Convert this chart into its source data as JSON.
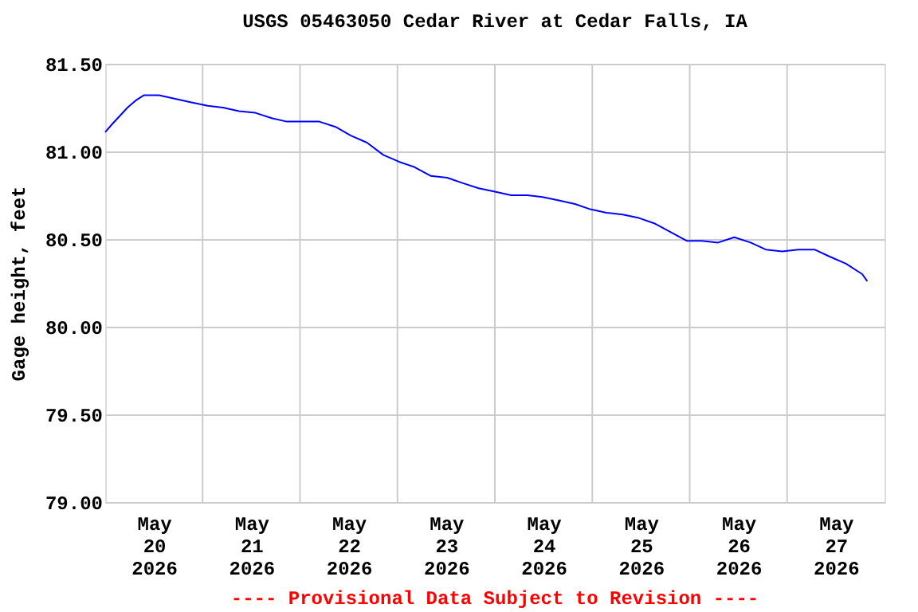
{
  "chart_data": {
    "type": "line",
    "title": "USGS 05463050 Cedar River at Cedar Falls, IA",
    "ylabel": "Gage height, feet",
    "annotations": [
      "---- Provisional Data Subject to Revision ----"
    ],
    "x": [
      "2026-05-20T00:00",
      "2026-05-20T01:30",
      "2026-05-20T03:30",
      "2026-05-20T05:30",
      "2026-05-20T07:30",
      "2026-05-20T09:30",
      "2026-05-20T11:30",
      "2026-05-20T13:15",
      "2026-05-20T17:15",
      "2026-05-20T21:15",
      "2026-05-21T01:15",
      "2026-05-21T05:00",
      "2026-05-21T09:00",
      "2026-05-21T13:00",
      "2026-05-21T17:00",
      "2026-05-21T20:45",
      "2026-05-22T00:45",
      "2026-05-22T04:45",
      "2026-05-22T08:45",
      "2026-05-22T12:30",
      "2026-05-22T16:30",
      "2026-05-22T20:30",
      "2026-05-23T00:30",
      "2026-05-23T04:15",
      "2026-05-23T08:15",
      "2026-05-23T12:15",
      "2026-05-23T16:00",
      "2026-05-23T20:00",
      "2026-05-24T00:00",
      "2026-05-24T04:00",
      "2026-05-24T08:00",
      "2026-05-24T11:45",
      "2026-05-24T15:45",
      "2026-05-24T19:45",
      "2026-05-24T23:30",
      "2026-05-25T03:30",
      "2026-05-25T07:30",
      "2026-05-25T11:30",
      "2026-05-25T15:15",
      "2026-05-25T19:15",
      "2026-05-25T23:15",
      "2026-05-26T03:00",
      "2026-05-26T07:00",
      "2026-05-26T11:00",
      "2026-05-26T15:00",
      "2026-05-26T18:45",
      "2026-05-26T22:45",
      "2026-05-27T02:45",
      "2026-05-27T06:45",
      "2026-05-27T10:30",
      "2026-05-27T14:30",
      "2026-05-27T18:30",
      "2026-05-27T19:45"
    ],
    "series": [
      {
        "color": "#0000ff",
        "values": [
          81.11,
          81.15,
          81.2,
          81.25,
          81.29,
          81.32,
          81.32,
          81.32,
          81.3,
          81.28,
          81.26,
          81.25,
          81.23,
          81.22,
          81.19,
          81.17,
          81.17,
          81.17,
          81.14,
          81.09,
          81.05,
          80.98,
          80.94,
          80.91,
          80.86,
          80.85,
          80.82,
          80.79,
          80.77,
          80.75,
          80.75,
          80.74,
          80.72,
          80.7,
          80.67,
          80.65,
          80.64,
          80.62,
          80.59,
          80.54,
          80.49,
          80.49,
          80.48,
          80.51,
          80.48,
          80.44,
          80.43,
          80.44,
          80.44,
          80.4,
          80.36,
          80.3,
          80.26
        ]
      }
    ],
    "xlim": [
      "2026-05-20T00:00",
      "2026-05-28T00:00"
    ],
    "xticks": [
      {
        "value": "2026-05-20T12:00",
        "label": "May\n20\n2026"
      },
      {
        "value": "2026-05-21T12:00",
        "label": "May\n21\n2026"
      },
      {
        "value": "2026-05-22T12:00",
        "label": "May\n22\n2026"
      },
      {
        "value": "2026-05-23T12:00",
        "label": "May\n23\n2026"
      },
      {
        "value": "2026-05-24T12:00",
        "label": "May\n24\n2026"
      },
      {
        "value": "2026-05-25T12:00",
        "label": "May\n25\n2026"
      },
      {
        "value": "2026-05-26T12:00",
        "label": "May\n26\n2026"
      },
      {
        "value": "2026-05-27T12:00",
        "label": "May\n27\n2026"
      },
      {
        "value": "2026-05-21T00:00",
        "label": null
      },
      {
        "value": "2026-05-22T00:00",
        "label": null
      },
      {
        "value": "2026-05-23T00:00",
        "label": null
      },
      {
        "value": "2026-05-24T00:00",
        "label": null
      },
      {
        "value": "2026-05-25T00:00",
        "label": null
      },
      {
        "value": "2026-05-26T00:00",
        "label": null
      },
      {
        "value": "2026-05-27T00:00",
        "label": null
      }
    ],
    "ylim": [
      79.0,
      81.5
    ],
    "yticks": [
      {
        "value": 79.0,
        "label": "79.00"
      },
      {
        "value": 79.5,
        "label": "79.50"
      },
      {
        "value": 80.0,
        "label": "80.00"
      },
      {
        "value": 80.5,
        "label": "80.50"
      },
      {
        "value": 81.0,
        "label": "81.00"
      },
      {
        "value": 81.5,
        "label": "81.50"
      }
    ],
    "grid": true,
    "marker": "none",
    "line_style": "solid"
  }
}
